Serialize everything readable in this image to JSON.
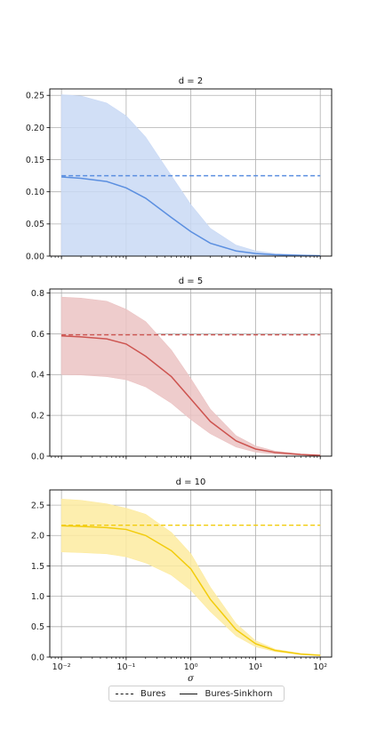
{
  "chart_data": [
    {
      "type": "line",
      "title": "d = 2",
      "title_italic_part": "d",
      "xlabel": "σ",
      "xscale": "log",
      "xlim": [
        0.01,
        100
      ],
      "ylim": [
        0,
        0.26
      ],
      "yticks": [
        "0.00",
        "0.05",
        "0.10",
        "0.15",
        "0.20",
        "0.25"
      ],
      "ytick_values": [
        0,
        0.05,
        0.1,
        0.15,
        0.2,
        0.25
      ],
      "color": "#5b8fe0",
      "band_color": "#c9d9f5",
      "grid": true,
      "series": [
        {
          "name": "Bures",
          "style": "dashed",
          "x": [
            0.01,
            100
          ],
          "y": [
            0.125,
            0.125
          ]
        },
        {
          "name": "Bures-Sinkhorn",
          "style": "solid",
          "x": [
            0.01,
            0.02,
            0.05,
            0.1,
            0.2,
            0.5,
            1,
            2,
            5,
            10,
            20,
            50,
            100
          ],
          "y": [
            0.123,
            0.121,
            0.116,
            0.106,
            0.09,
            0.06,
            0.038,
            0.02,
            0.008,
            0.004,
            0.002,
            0.001,
            0.0005
          ],
          "upper": [
            0.251,
            0.249,
            0.238,
            0.218,
            0.185,
            0.125,
            0.08,
            0.043,
            0.017,
            0.008,
            0.004,
            0.002,
            0.001
          ],
          "lower": [
            0,
            0,
            0,
            0,
            0,
            0,
            0,
            0,
            0,
            0,
            0,
            0,
            0
          ]
        }
      ]
    },
    {
      "type": "line",
      "title": "d = 5",
      "xscale": "log",
      "xlim": [
        0.01,
        100
      ],
      "ylim": [
        0,
        0.82
      ],
      "yticks": [
        "0.0",
        "0.2",
        "0.4",
        "0.6",
        "0.8"
      ],
      "ytick_values": [
        0,
        0.2,
        0.4,
        0.6,
        0.8
      ],
      "color": "#cd5450",
      "band_color": "#ebc3c3",
      "grid": true,
      "series": [
        {
          "name": "Bures",
          "style": "dashed",
          "x": [
            0.01,
            100
          ],
          "y": [
            0.595,
            0.595
          ]
        },
        {
          "name": "Bures-Sinkhorn",
          "style": "solid",
          "x": [
            0.01,
            0.02,
            0.05,
            0.1,
            0.2,
            0.5,
            1,
            2,
            5,
            10,
            20,
            50,
            100
          ],
          "y": [
            0.59,
            0.585,
            0.575,
            0.55,
            0.49,
            0.39,
            0.28,
            0.17,
            0.075,
            0.035,
            0.018,
            0.008,
            0.004
          ],
          "upper": [
            0.78,
            0.775,
            0.76,
            0.72,
            0.66,
            0.52,
            0.38,
            0.23,
            0.1,
            0.05,
            0.025,
            0.01,
            0.005
          ],
          "lower": [
            0.4,
            0.398,
            0.39,
            0.375,
            0.34,
            0.26,
            0.18,
            0.11,
            0.045,
            0.02,
            0.01,
            0.005,
            0.002
          ]
        }
      ]
    },
    {
      "type": "line",
      "title": "d = 10",
      "xscale": "log",
      "xlim": [
        0.01,
        100
      ],
      "ylim": [
        0,
        2.75
      ],
      "yticks": [
        "0.0",
        "0.5",
        "1.0",
        "1.5",
        "2.0",
        "2.5"
      ],
      "ytick_values": [
        0,
        0.5,
        1.0,
        1.5,
        2.0,
        2.5
      ],
      "xticks": [
        "10⁻²",
        "10⁻¹",
        "10⁰",
        "10¹",
        "10²"
      ],
      "xtick_values": [
        0.01,
        0.1,
        1,
        10,
        100
      ],
      "color": "#f2cc0c",
      "band_color": "#fdeba0",
      "grid": true,
      "series": [
        {
          "name": "Bures",
          "style": "dashed",
          "x": [
            0.01,
            100
          ],
          "y": [
            2.17,
            2.17
          ]
        },
        {
          "name": "Bures-Sinkhorn",
          "style": "solid",
          "x": [
            0.01,
            0.02,
            0.05,
            0.1,
            0.2,
            0.5,
            1,
            2,
            5,
            10,
            20,
            50,
            100
          ],
          "y": [
            2.16,
            2.15,
            2.13,
            2.1,
            2.0,
            1.75,
            1.45,
            0.95,
            0.45,
            0.22,
            0.11,
            0.05,
            0.03
          ],
          "upper": [
            2.6,
            2.58,
            2.52,
            2.45,
            2.35,
            2.05,
            1.7,
            1.15,
            0.55,
            0.27,
            0.13,
            0.06,
            0.035
          ],
          "lower": [
            1.73,
            1.72,
            1.7,
            1.65,
            1.55,
            1.35,
            1.1,
            0.75,
            0.35,
            0.17,
            0.09,
            0.04,
            0.025
          ]
        }
      ]
    }
  ],
  "legend": {
    "entries": [
      {
        "label": "Bures",
        "style": "dashed"
      },
      {
        "label": "Bures-Sinkhorn",
        "style": "solid"
      }
    ],
    "placement": "bottom-center"
  }
}
